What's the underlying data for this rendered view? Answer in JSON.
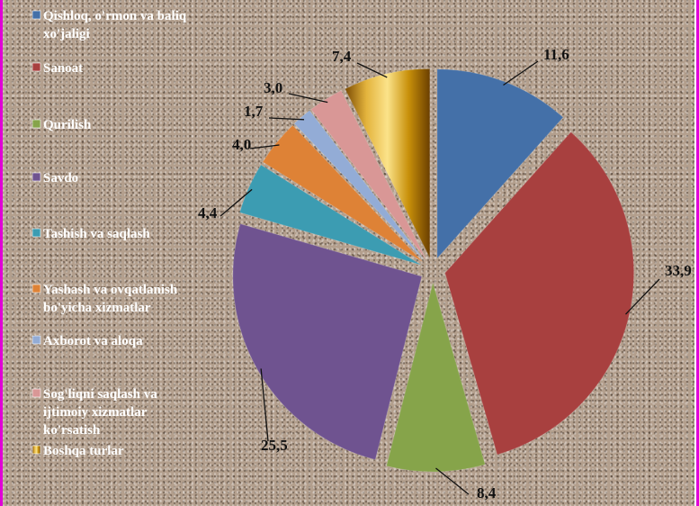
{
  "chart_data": {
    "type": "pie",
    "title": "",
    "legend_position": "left",
    "exploded": true,
    "categories": [
      "Qishloq, o'rmon va baliq xo'jaligi",
      "Sanoat",
      "Qurilish",
      "Savdo",
      "Tashish va saqlash",
      "Yashash va ovqatlanish bo'yicha xizmatlar",
      "Axborot va aloqa",
      "Sog'liqni saqlash va ijtimoiy xizmatlar ko'rsatish",
      "Boshqa turlar"
    ],
    "legend_lines": [
      [
        "Qishloq, o'rmon va baliq",
        "xo'jaligi"
      ],
      [
        "Sanoat"
      ],
      [
        "Qurilish"
      ],
      [
        "Savdo"
      ],
      [
        "Tashish va saqlash"
      ],
      [
        "Yashash va ovqatlanish",
        "bo'yicha xizmatlar"
      ],
      [
        "Axborot va aloqa"
      ],
      [
        "Sog'liqni saqlash va",
        "ijtimoiy xizmatlar",
        "ko'rsatish"
      ],
      [
        "Boshqa turlar"
      ]
    ],
    "values": [
      11.6,
      33.9,
      8.4,
      25.5,
      4.4,
      4.0,
      1.7,
      3.0,
      7.4
    ],
    "value_labels": [
      "11,6",
      "33,9",
      "8,4",
      "25,5",
      "4,4",
      "4,0",
      "1,7",
      "3,0",
      "7,4"
    ],
    "colors": [
      "#4470a8",
      "#a8403f",
      "#86a44a",
      "#6f5390",
      "#3c9cb2",
      "#de8236",
      "#93acd6",
      "#d99796",
      "#c8900a"
    ]
  }
}
